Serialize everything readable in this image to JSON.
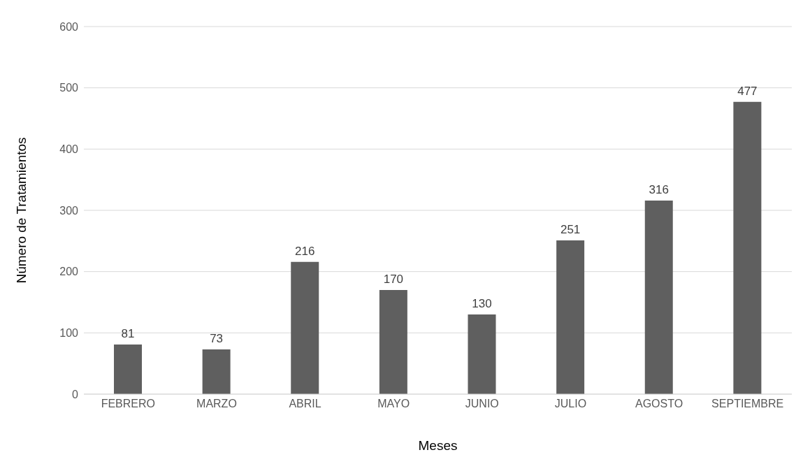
{
  "chart_data": {
    "type": "bar",
    "xlabel": "Meses",
    "ylabel": "Número de Tratamientos",
    "categories": [
      "FEBRERO",
      "MARZO",
      "ABRIL",
      "MAYO",
      "JUNIO",
      "JULIO",
      "AGOSTO",
      "SEPTIEMBRE"
    ],
    "values": [
      81,
      73,
      216,
      170,
      130,
      251,
      316,
      477
    ],
    "color": "#5f5f5f",
    "ylim": [
      0,
      600
    ],
    "yticks": [
      0,
      100,
      200,
      300,
      400,
      500,
      600
    ],
    "grid": "y",
    "data_labels": true
  }
}
